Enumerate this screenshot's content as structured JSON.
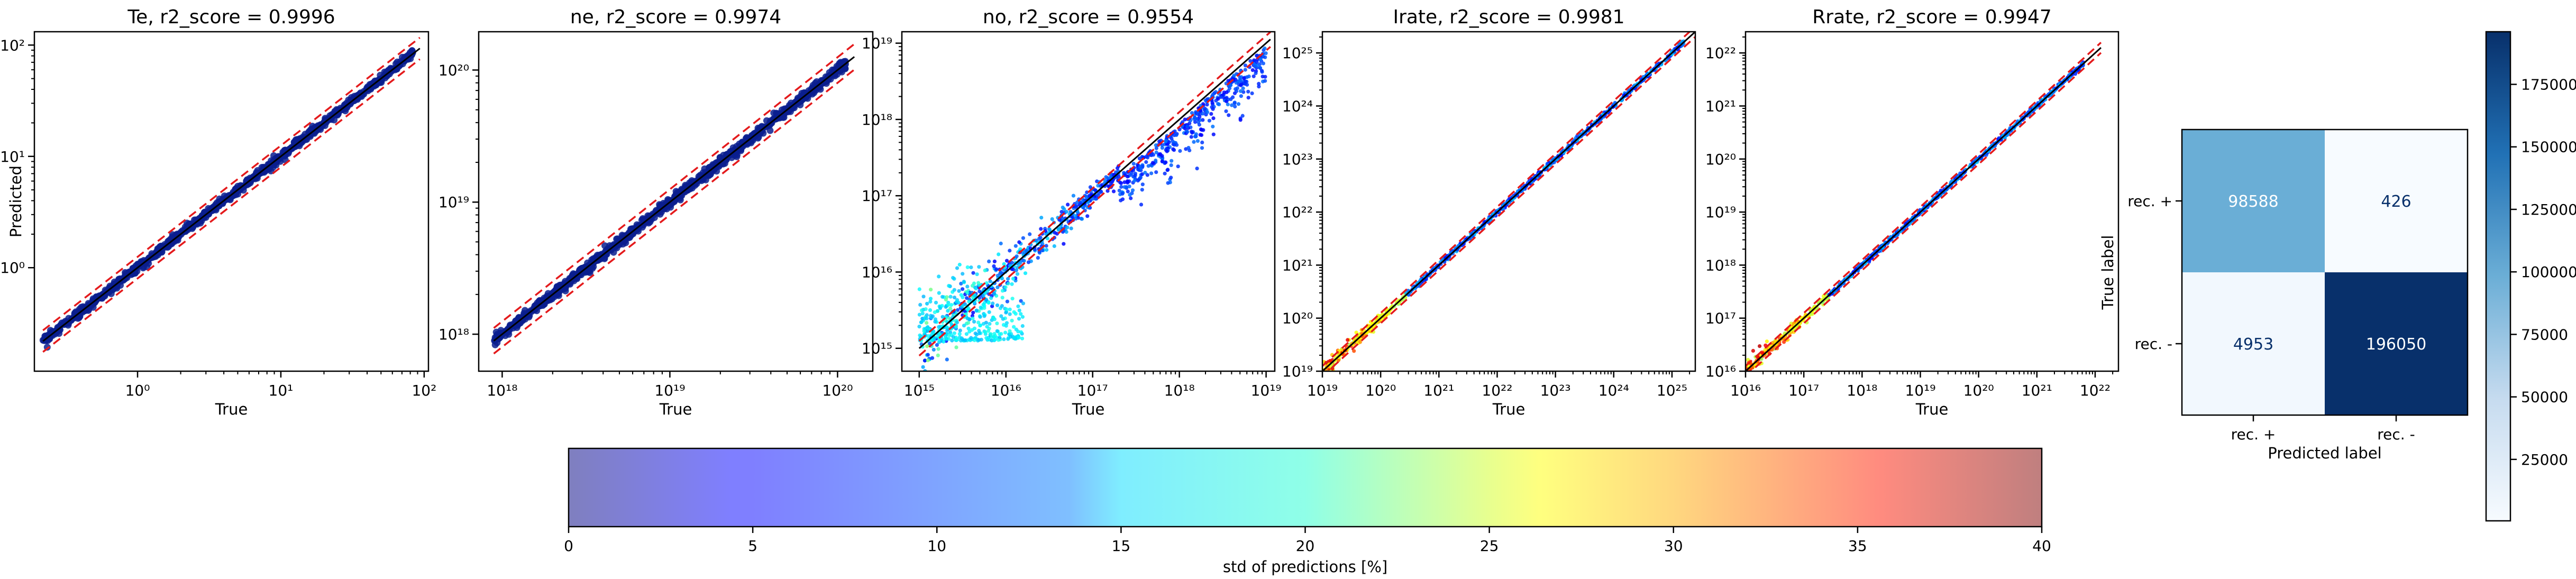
{
  "figure": {
    "cmap_label": "std of predictions [%]"
  },
  "chart_data": [
    {
      "type": "scatter",
      "title": "Te, r2_score = 0.9996",
      "xlabel": "True",
      "ylabel": "Predicted",
      "log": true,
      "xlim_exp": [
        -0.72,
        2.03
      ],
      "ylim_exp": [
        -0.93,
        2.12
      ],
      "xticks": [
        {
          "exp": 0,
          "label": "10⁰"
        },
        {
          "exp": 1,
          "label": "10¹"
        },
        {
          "exp": 2,
          "label": "10²"
        }
      ],
      "yticks": [
        {
          "exp": 0,
          "label": "10⁰"
        },
        {
          "exp": 1,
          "label": "10¹"
        },
        {
          "exp": 2,
          "label": "10²"
        }
      ],
      "data_range_exp": [
        -0.66,
        1.92
      ],
      "band_factor": 1.25,
      "color": "#002a8a"
    },
    {
      "type": "scatter",
      "title": "ne, r2_score = 0.9974",
      "xlabel": "True",
      "log": true,
      "xlim_exp": [
        17.86,
        20.21
      ],
      "ylim_exp": [
        17.72,
        20.29
      ],
      "xticks": [
        {
          "exp": 18,
          "label": "10¹⁸"
        },
        {
          "exp": 19,
          "label": "10¹⁹"
        },
        {
          "exp": 20,
          "label": "10²⁰"
        }
      ],
      "yticks": [
        {
          "exp": 18,
          "label": "10¹⁸"
        },
        {
          "exp": 19,
          "label": "10¹⁹"
        },
        {
          "exp": 20,
          "label": "10²⁰"
        }
      ],
      "data_range_exp": [
        17.95,
        20.05
      ],
      "band_factor": 1.25,
      "color": "#002a8a"
    },
    {
      "type": "scatter",
      "title": "no, r2_score = 0.9554",
      "xlabel": "True",
      "log": true,
      "xlim_exp": [
        14.8,
        19.1
      ],
      "ylim_exp": [
        14.7,
        19.15
      ],
      "xticks": [
        {
          "exp": 15,
          "label": "10¹⁵"
        },
        {
          "exp": 16,
          "label": "10¹⁶"
        },
        {
          "exp": 17,
          "label": "10¹⁷"
        },
        {
          "exp": 18,
          "label": "10¹⁸"
        },
        {
          "exp": 19,
          "label": "10¹⁹"
        }
      ],
      "yticks": [
        {
          "exp": 15,
          "label": "10¹⁵"
        },
        {
          "exp": 16,
          "label": "10¹⁶"
        },
        {
          "exp": 17,
          "label": "10¹⁷"
        },
        {
          "exp": 18,
          "label": "10¹⁸"
        },
        {
          "exp": 19,
          "label": "10¹⁹"
        }
      ],
      "data_range_exp": [
        15.0,
        19.0
      ],
      "band_factor": 1.25,
      "color": "#1a4cff"
    },
    {
      "type": "scatter",
      "title": "Irate, r2_score = 0.9981",
      "xlabel": "True",
      "log": true,
      "xlim_exp": [
        19.0,
        25.4
      ],
      "ylim_exp": [
        19.0,
        25.4
      ],
      "xticks": [
        {
          "exp": 19,
          "label": "10¹⁹"
        },
        {
          "exp": 20,
          "label": "10²⁰"
        },
        {
          "exp": 21,
          "label": "10²¹"
        },
        {
          "exp": 22,
          "label": "10²²"
        },
        {
          "exp": 23,
          "label": "10²³"
        },
        {
          "exp": 24,
          "label": "10²⁴"
        },
        {
          "exp": 25,
          "label": "10²⁵"
        }
      ],
      "yticks": [
        {
          "exp": 19,
          "label": "10¹⁹"
        },
        {
          "exp": 20,
          "label": "10²⁰"
        },
        {
          "exp": 21,
          "label": "10²¹"
        },
        {
          "exp": 22,
          "label": "10²²"
        },
        {
          "exp": 23,
          "label": "10²³"
        },
        {
          "exp": 24,
          "label": "10²⁴"
        },
        {
          "exp": 25,
          "label": "10²⁵"
        }
      ],
      "data_range_exp": [
        19.0,
        25.2
      ],
      "band_factor": 1.25,
      "color": "#1a4cff"
    },
    {
      "type": "scatter",
      "title": "Rrate, r2_score = 0.9947",
      "xlabel": "True",
      "log": true,
      "xlim_exp": [
        16.0,
        22.4
      ],
      "ylim_exp": [
        16.0,
        22.4
      ],
      "xticks": [
        {
          "exp": 16,
          "label": "10¹⁶"
        },
        {
          "exp": 17,
          "label": "10¹⁷"
        },
        {
          "exp": 18,
          "label": "10¹⁸"
        },
        {
          "exp": 19,
          "label": "10¹⁹"
        },
        {
          "exp": 20,
          "label": "10²⁰"
        },
        {
          "exp": 21,
          "label": "10²¹"
        },
        {
          "exp": 22,
          "label": "10²²"
        }
      ],
      "yticks": [
        {
          "exp": 16,
          "label": "10¹⁶"
        },
        {
          "exp": 17,
          "label": "10¹⁷"
        },
        {
          "exp": 18,
          "label": "10¹⁸"
        },
        {
          "exp": 19,
          "label": "10¹⁹"
        },
        {
          "exp": 20,
          "label": "10²⁰"
        },
        {
          "exp": 21,
          "label": "10²¹"
        },
        {
          "exp": 22,
          "label": "10²²"
        }
      ],
      "data_range_exp": [
        16.0,
        21.8
      ],
      "band_factor": 1.25,
      "color": "#1a4cff"
    },
    {
      "type": "heatmap",
      "xlabel": "Predicted label",
      "ylabel": "True label",
      "x_categories": [
        "rec. +",
        "rec. -"
      ],
      "y_categories": [
        "rec. +",
        "rec. -"
      ],
      "values": [
        [
          98588,
          426
        ],
        [
          4953,
          196050
        ]
      ],
      "vmin": 426,
      "vmax": 196050,
      "colorbar_ticks": [
        25000,
        50000,
        75000,
        100000,
        125000,
        150000,
        175000
      ],
      "colorbar_labels": [
        "25000",
        "50000",
        "75000",
        "100000",
        "125000",
        "150000",
        "175000"
      ],
      "cmap": "Blues"
    }
  ],
  "colorbar": {
    "label": "std of predictions [%]",
    "range": [
      0,
      40
    ],
    "ticks": [
      0,
      5,
      10,
      15,
      20,
      25,
      30,
      35,
      40
    ],
    "tick_labels": [
      "0",
      "5",
      "10",
      "15",
      "20",
      "25",
      "30",
      "35",
      "40"
    ],
    "cmap": "jet",
    "alpha": 0.5
  }
}
